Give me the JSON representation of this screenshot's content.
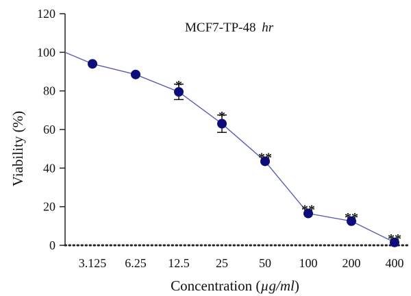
{
  "chart_data": {
    "type": "line",
    "title": "MCF7-TP-48",
    "title_suffix": "hr",
    "xlabel_prefix": "Concentration (",
    "xlabel_unit": "µg/ml",
    "xlabel_suffix": ")",
    "ylabel": "Viability (%)",
    "ylim": [
      0,
      120
    ],
    "yticks": [
      "0",
      "20",
      "40",
      "60",
      "80",
      "100",
      "120"
    ],
    "categories": [
      "3.125",
      "6.25",
      "12.5",
      "25",
      "50",
      "100",
      "200",
      "400"
    ],
    "start_value": 100,
    "series": [
      {
        "values": [
          94,
          88.5,
          79.5,
          63,
          43.5,
          16.5,
          12.5,
          1.5
        ],
        "error": [
          0,
          0,
          4,
          4.5,
          0,
          0,
          0,
          0
        ],
        "significance": [
          "",
          "",
          "*",
          "*",
          "**",
          "**",
          "**",
          "**"
        ]
      }
    ],
    "baseline_style": "dotted",
    "grid": false,
    "colors": {
      "marker": "#0d0d7a",
      "line": "#5a5ab8",
      "axis": "#222222"
    }
  }
}
